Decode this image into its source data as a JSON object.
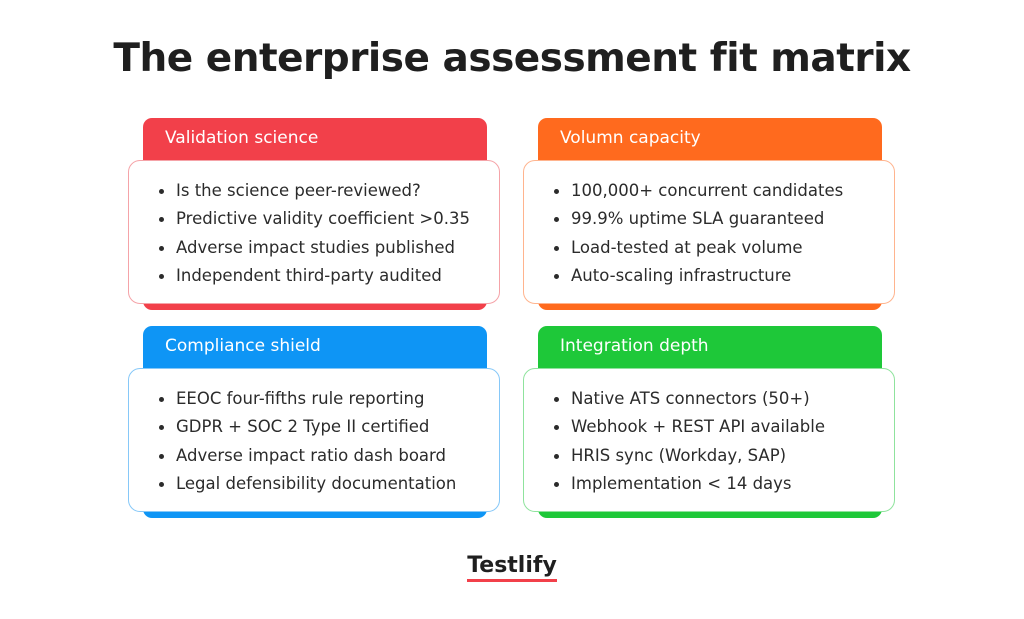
{
  "title": "The enterprise assessment fit matrix",
  "cards": [
    {
      "title": "Validation science",
      "items": [
        "Is the science peer-reviewed?",
        "Predictive validity coefficient >0.35",
        "Adverse impact studies published",
        "Independent third-party audited"
      ]
    },
    {
      "title": "Volumn capacity",
      "items": [
        "100,000+ concurrent candidates",
        "99.9% uptime SLA guaranteed",
        "Load-tested at peak volume",
        "Auto-scaling infrastructure"
      ]
    },
    {
      "title": "Compliance shield",
      "items": [
        "EEOC four-fifths rule reporting",
        "GDPR + SOC 2 Type II certified",
        "Adverse impact ratio dash board",
        "Legal defensibility documentation"
      ]
    },
    {
      "title": "Integration depth",
      "items": [
        "Native ATS connectors (50+)",
        "Webhook + REST API available",
        "HRIS sync (Workday, SAP)",
        "Implementation < 14 days"
      ]
    }
  ],
  "logo": "Testlify"
}
